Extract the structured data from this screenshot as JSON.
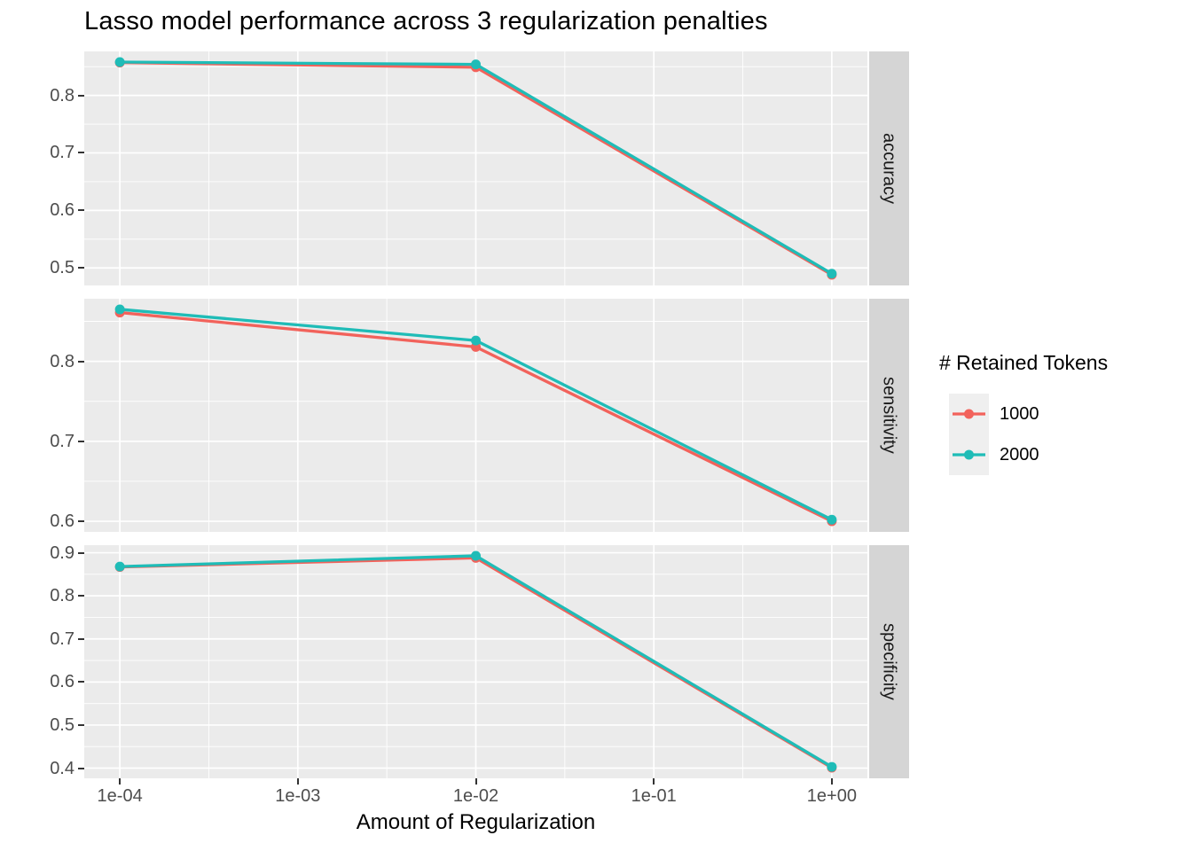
{
  "chart_data": {
    "type": "line",
    "title": "Lasso model performance across 3 regularization penalties",
    "xlabel": "Amount of Regularization",
    "ylabel": "",
    "x_scale": "log10",
    "x": [
      0.0001,
      0.01,
      1
    ],
    "x_ticks": [
      {
        "label": "1e-04",
        "value": 0.0001
      },
      {
        "label": "1e-03",
        "value": 0.001
      },
      {
        "label": "1e-02",
        "value": 0.01
      },
      {
        "label": "1e-01",
        "value": 0.1
      },
      {
        "label": "1e+00",
        "value": 1
      }
    ],
    "grid": true,
    "legend": {
      "title": "# Retained Tokens",
      "position": "right",
      "entries": [
        {
          "label": "1000",
          "color": "#F2625B"
        },
        {
          "label": "2000",
          "color": "#1FBCB7"
        }
      ]
    },
    "facets": [
      {
        "label": "accuracy",
        "y_ticks": [
          "0.8",
          "0.7",
          "0.6",
          "0.5"
        ],
        "series": [
          {
            "name": "1000",
            "color": "#F2625B",
            "values": [
              0.857,
              0.849,
              0.488
            ]
          },
          {
            "name": "2000",
            "color": "#1FBCB7",
            "values": [
              0.858,
              0.854,
              0.49
            ]
          }
        ]
      },
      {
        "label": "sensitivity",
        "y_ticks": [
          "0.8",
          "0.7",
          "0.6"
        ],
        "series": [
          {
            "name": "1000",
            "color": "#F2625B",
            "values": [
              0.861,
              0.818,
              0.6
            ]
          },
          {
            "name": "2000",
            "color": "#1FBCB7",
            "values": [
              0.865,
              0.826,
              0.602
            ]
          }
        ]
      },
      {
        "label": "specificity",
        "y_ticks": [
          "0.9",
          "0.8",
          "0.7",
          "0.6",
          "0.5",
          "0.4"
        ],
        "series": [
          {
            "name": "1000",
            "color": "#F2625B",
            "values": [
              0.867,
              0.888,
              0.401
            ]
          },
          {
            "name": "2000",
            "color": "#1FBCB7",
            "values": [
              0.868,
              0.893,
              0.403
            ]
          }
        ]
      }
    ],
    "colors": {
      "panel_bg": "#EBEBEB",
      "strip_bg": "#D5D5D5",
      "grid": "#FFFFFF",
      "tick": "#333333",
      "tick_label": "#4D4D4D",
      "text": "#000000",
      "legend_key_bg": "#EFEFEF"
    }
  }
}
